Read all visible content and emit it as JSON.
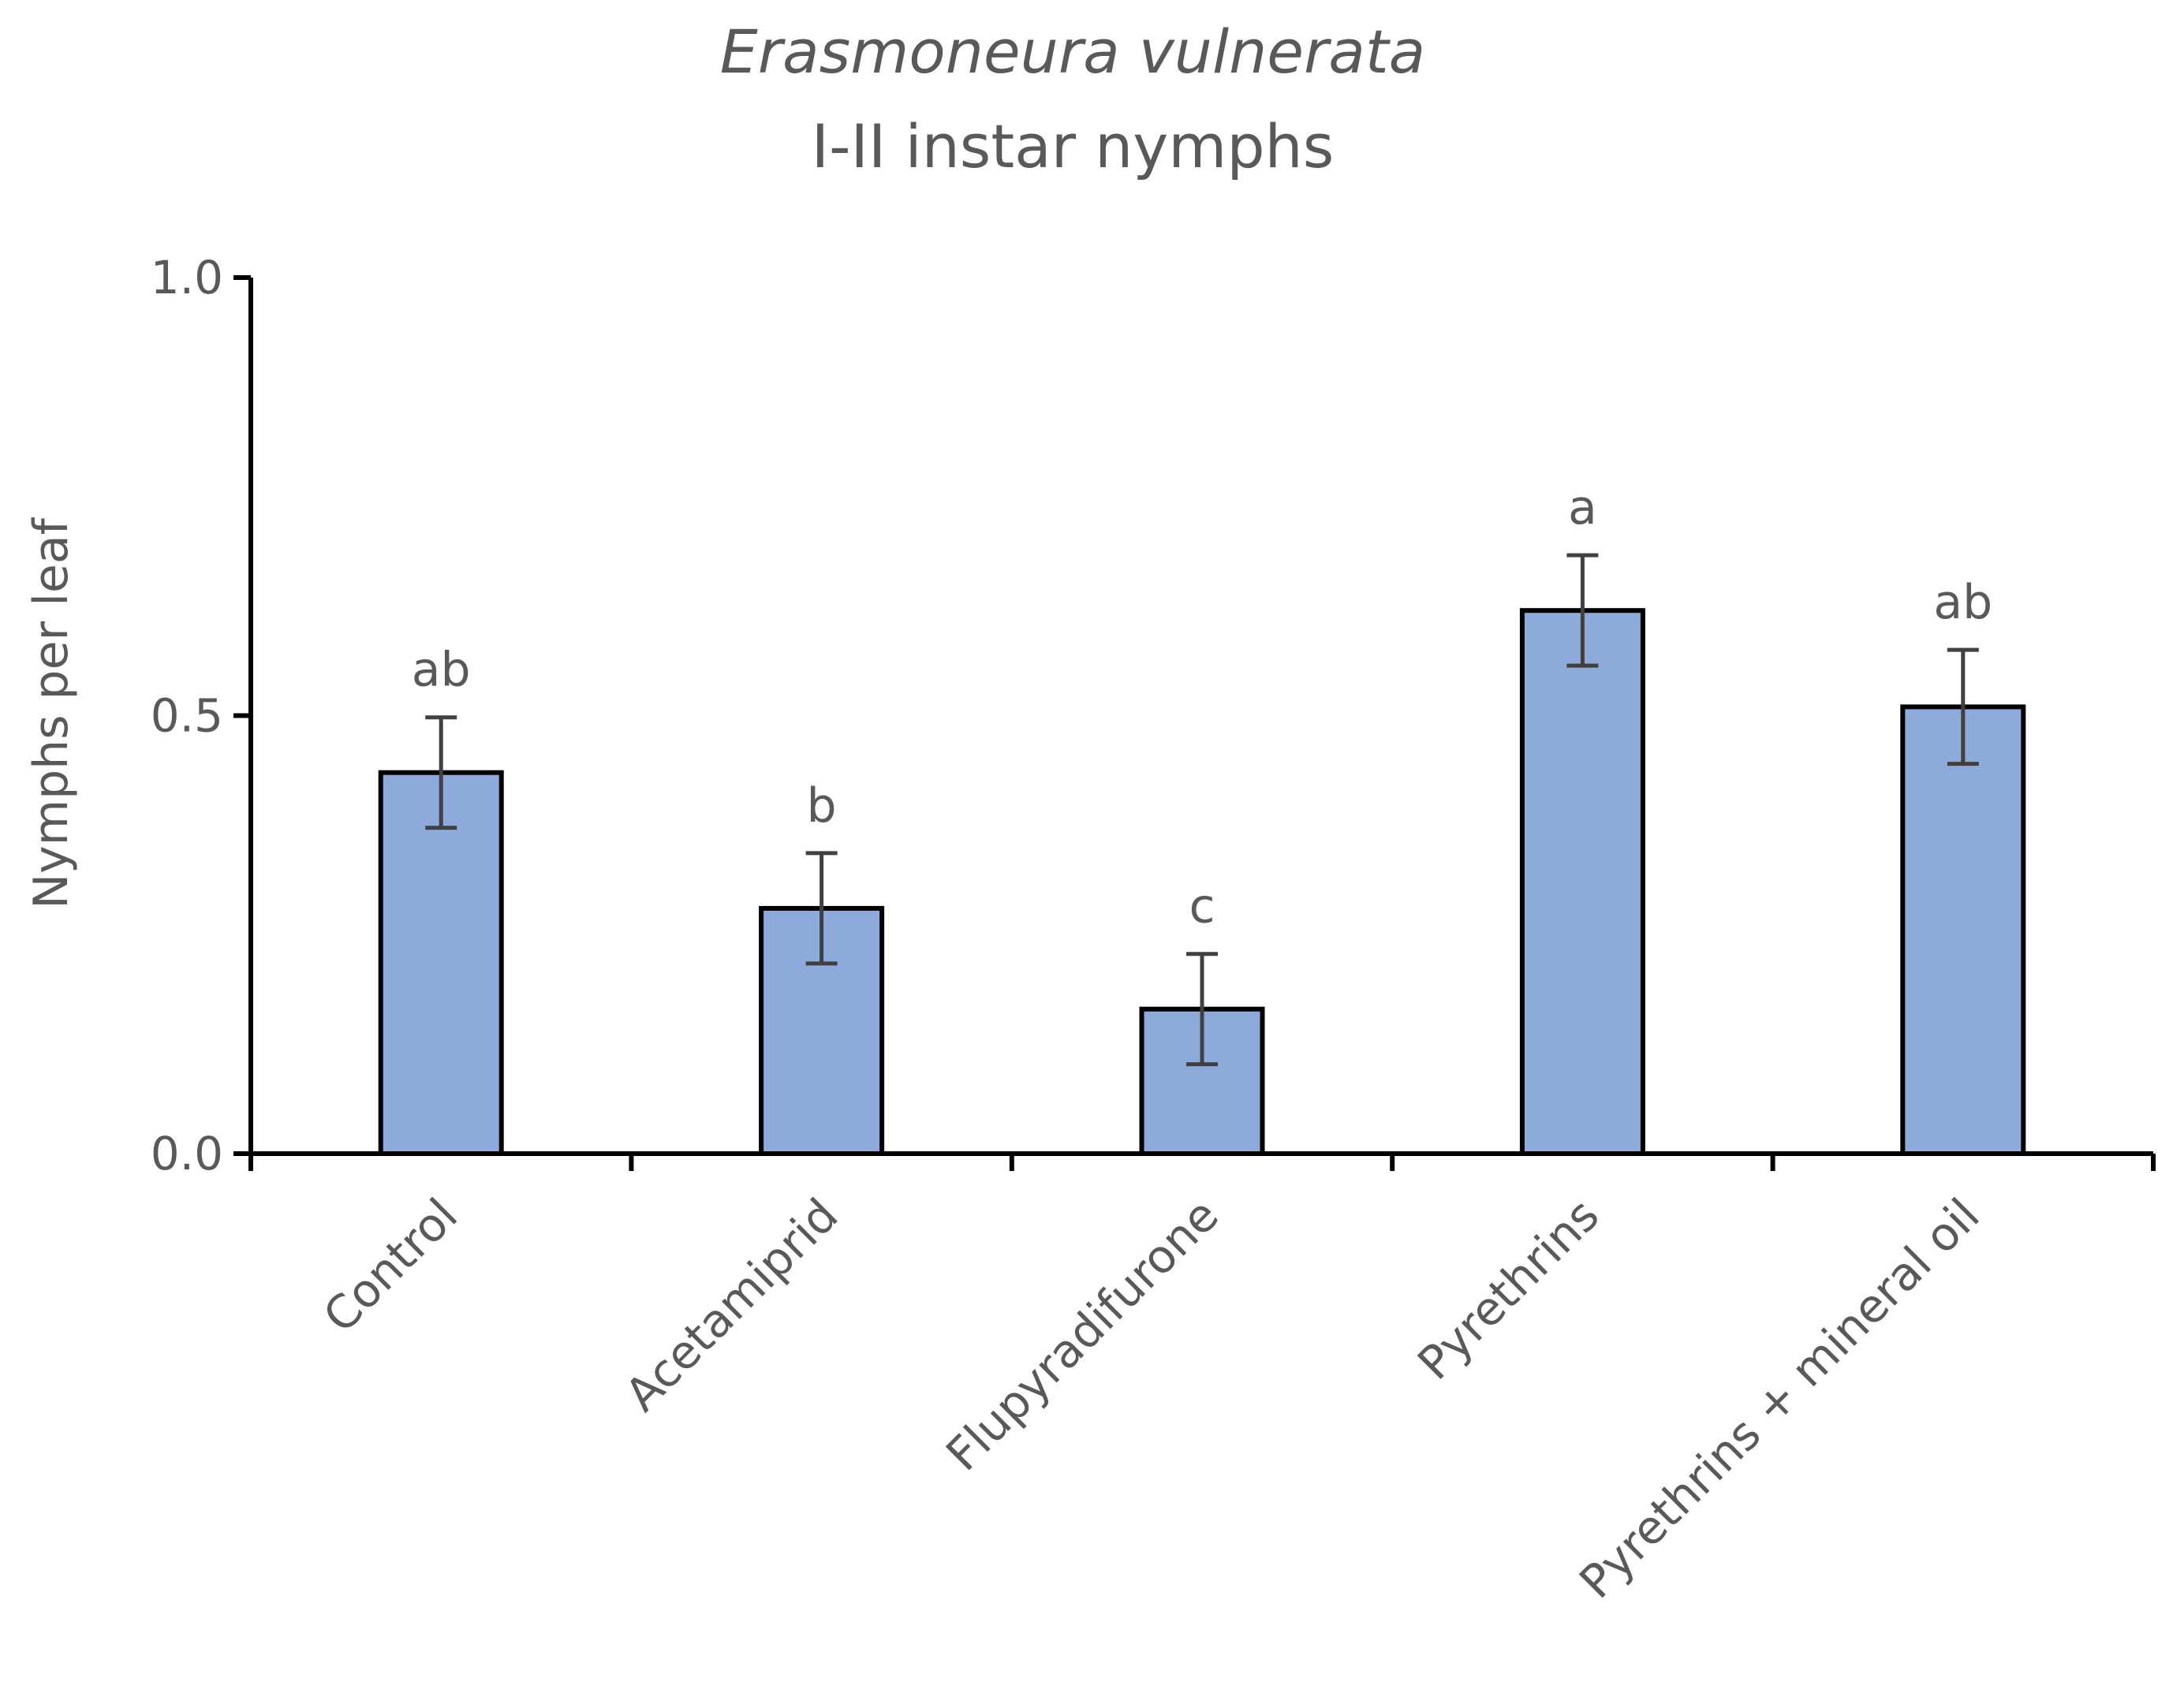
{
  "chart_data": {
    "type": "bar",
    "title_species": "Erasmoneura vulnerata",
    "title_stage": "I-II instar nymphs",
    "xlabel": "",
    "ylabel": "Nymphs per leaf",
    "ylim": [
      0,
      1.0
    ],
    "yticks": [
      {
        "value": 0.0,
        "label": "0.0"
      },
      {
        "value": 0.5,
        "label": "0.5"
      },
      {
        "value": 1.0,
        "label": "1.0"
      }
    ],
    "grid": false,
    "categories": [
      "Control",
      "Acetamiprid",
      "Flupyradifurone",
      "Pyrethrins",
      "Pyrethrins + mineral oil"
    ],
    "values": [
      0.435,
      0.28,
      0.165,
      0.62,
      0.51
    ],
    "error": [
      0.063,
      0.063,
      0.063,
      0.063,
      0.065
    ],
    "significance_letters": [
      "ab",
      "b",
      "c",
      "a",
      "ab"
    ],
    "bar_color": "#8eaadb",
    "bar_edge_color": "#000000",
    "error_bar_color": "#404040"
  }
}
